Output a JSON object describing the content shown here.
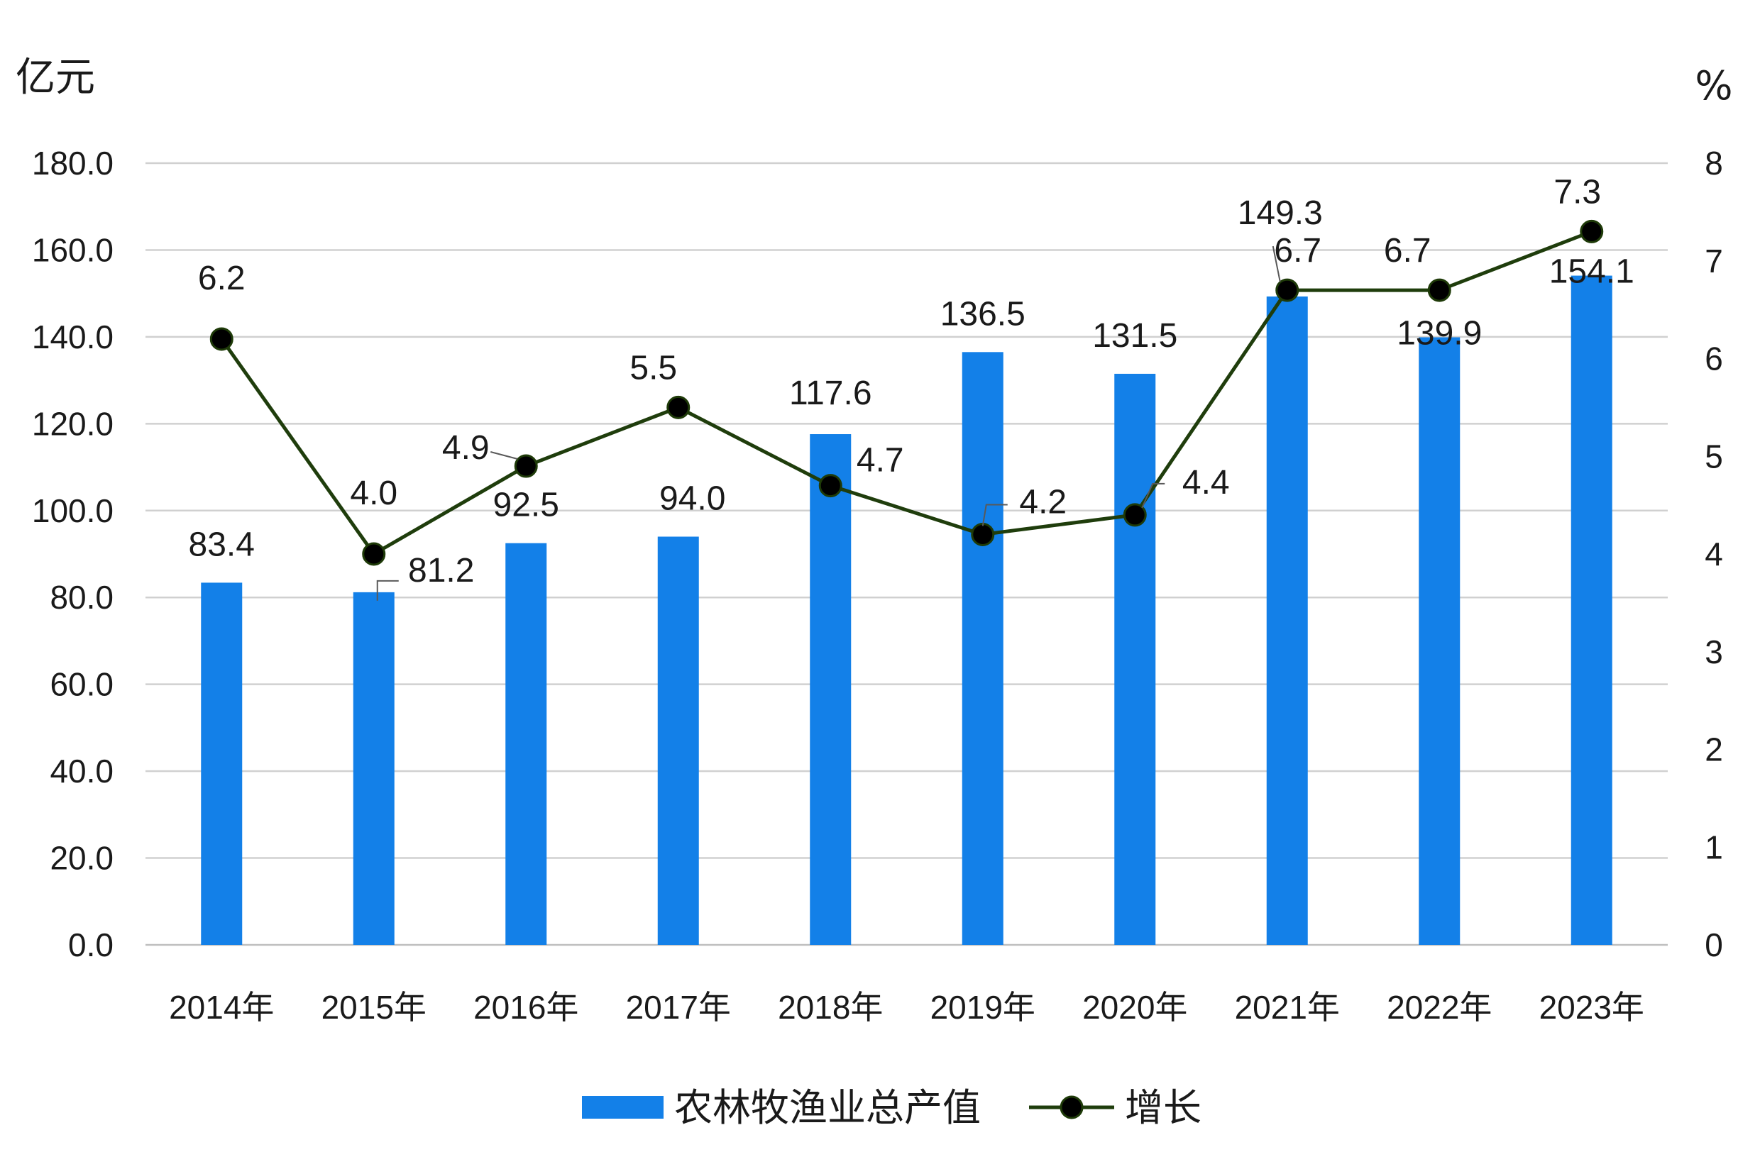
{
  "chart_data": {
    "type": "bar",
    "categories": [
      "2014年",
      "2015年",
      "2016年",
      "2017年",
      "2018年",
      "2019年",
      "2020年",
      "2021年",
      "2022年",
      "2023年"
    ],
    "series": [
      {
        "name": "农林牧渔业总产值",
        "chart_type": "bar",
        "axis": "left",
        "color": "#1380e8",
        "values": [
          83.4,
          81.2,
          92.5,
          94.0,
          117.6,
          136.5,
          131.5,
          149.3,
          139.9,
          154.1
        ],
        "labels": [
          "83.4",
          "81.2",
          "92.5",
          "94.0",
          "117.6",
          "136.5",
          "131.5",
          "149.3",
          "139.9",
          "154.1"
        ]
      },
      {
        "name": "增长",
        "chart_type": "line",
        "axis": "right",
        "color": "#1f3d0c",
        "marker_color": "#000000",
        "values": [
          6.2,
          4.0,
          4.9,
          5.5,
          4.7,
          4.2,
          4.4,
          6.7,
          6.7,
          7.3
        ],
        "labels": [
          "6.2",
          "4.0",
          "4.9",
          "5.5",
          "4.7",
          "4.2",
          "4.4",
          "6.7",
          "6.7",
          "7.3"
        ]
      }
    ],
    "y_left": {
      "unit": "亿元",
      "ylim": [
        0,
        180
      ],
      "ticks": [
        "0.0",
        "20.0",
        "40.0",
        "60.0",
        "80.0",
        "100.0",
        "120.0",
        "140.0",
        "160.0",
        "180.0"
      ]
    },
    "y_right": {
      "unit": "%",
      "ylim": [
        0,
        8
      ],
      "ticks": [
        "0",
        "1",
        "2",
        "3",
        "4",
        "5",
        "6",
        "7",
        "8"
      ]
    },
    "grid": true,
    "legend_position": "bottom"
  }
}
